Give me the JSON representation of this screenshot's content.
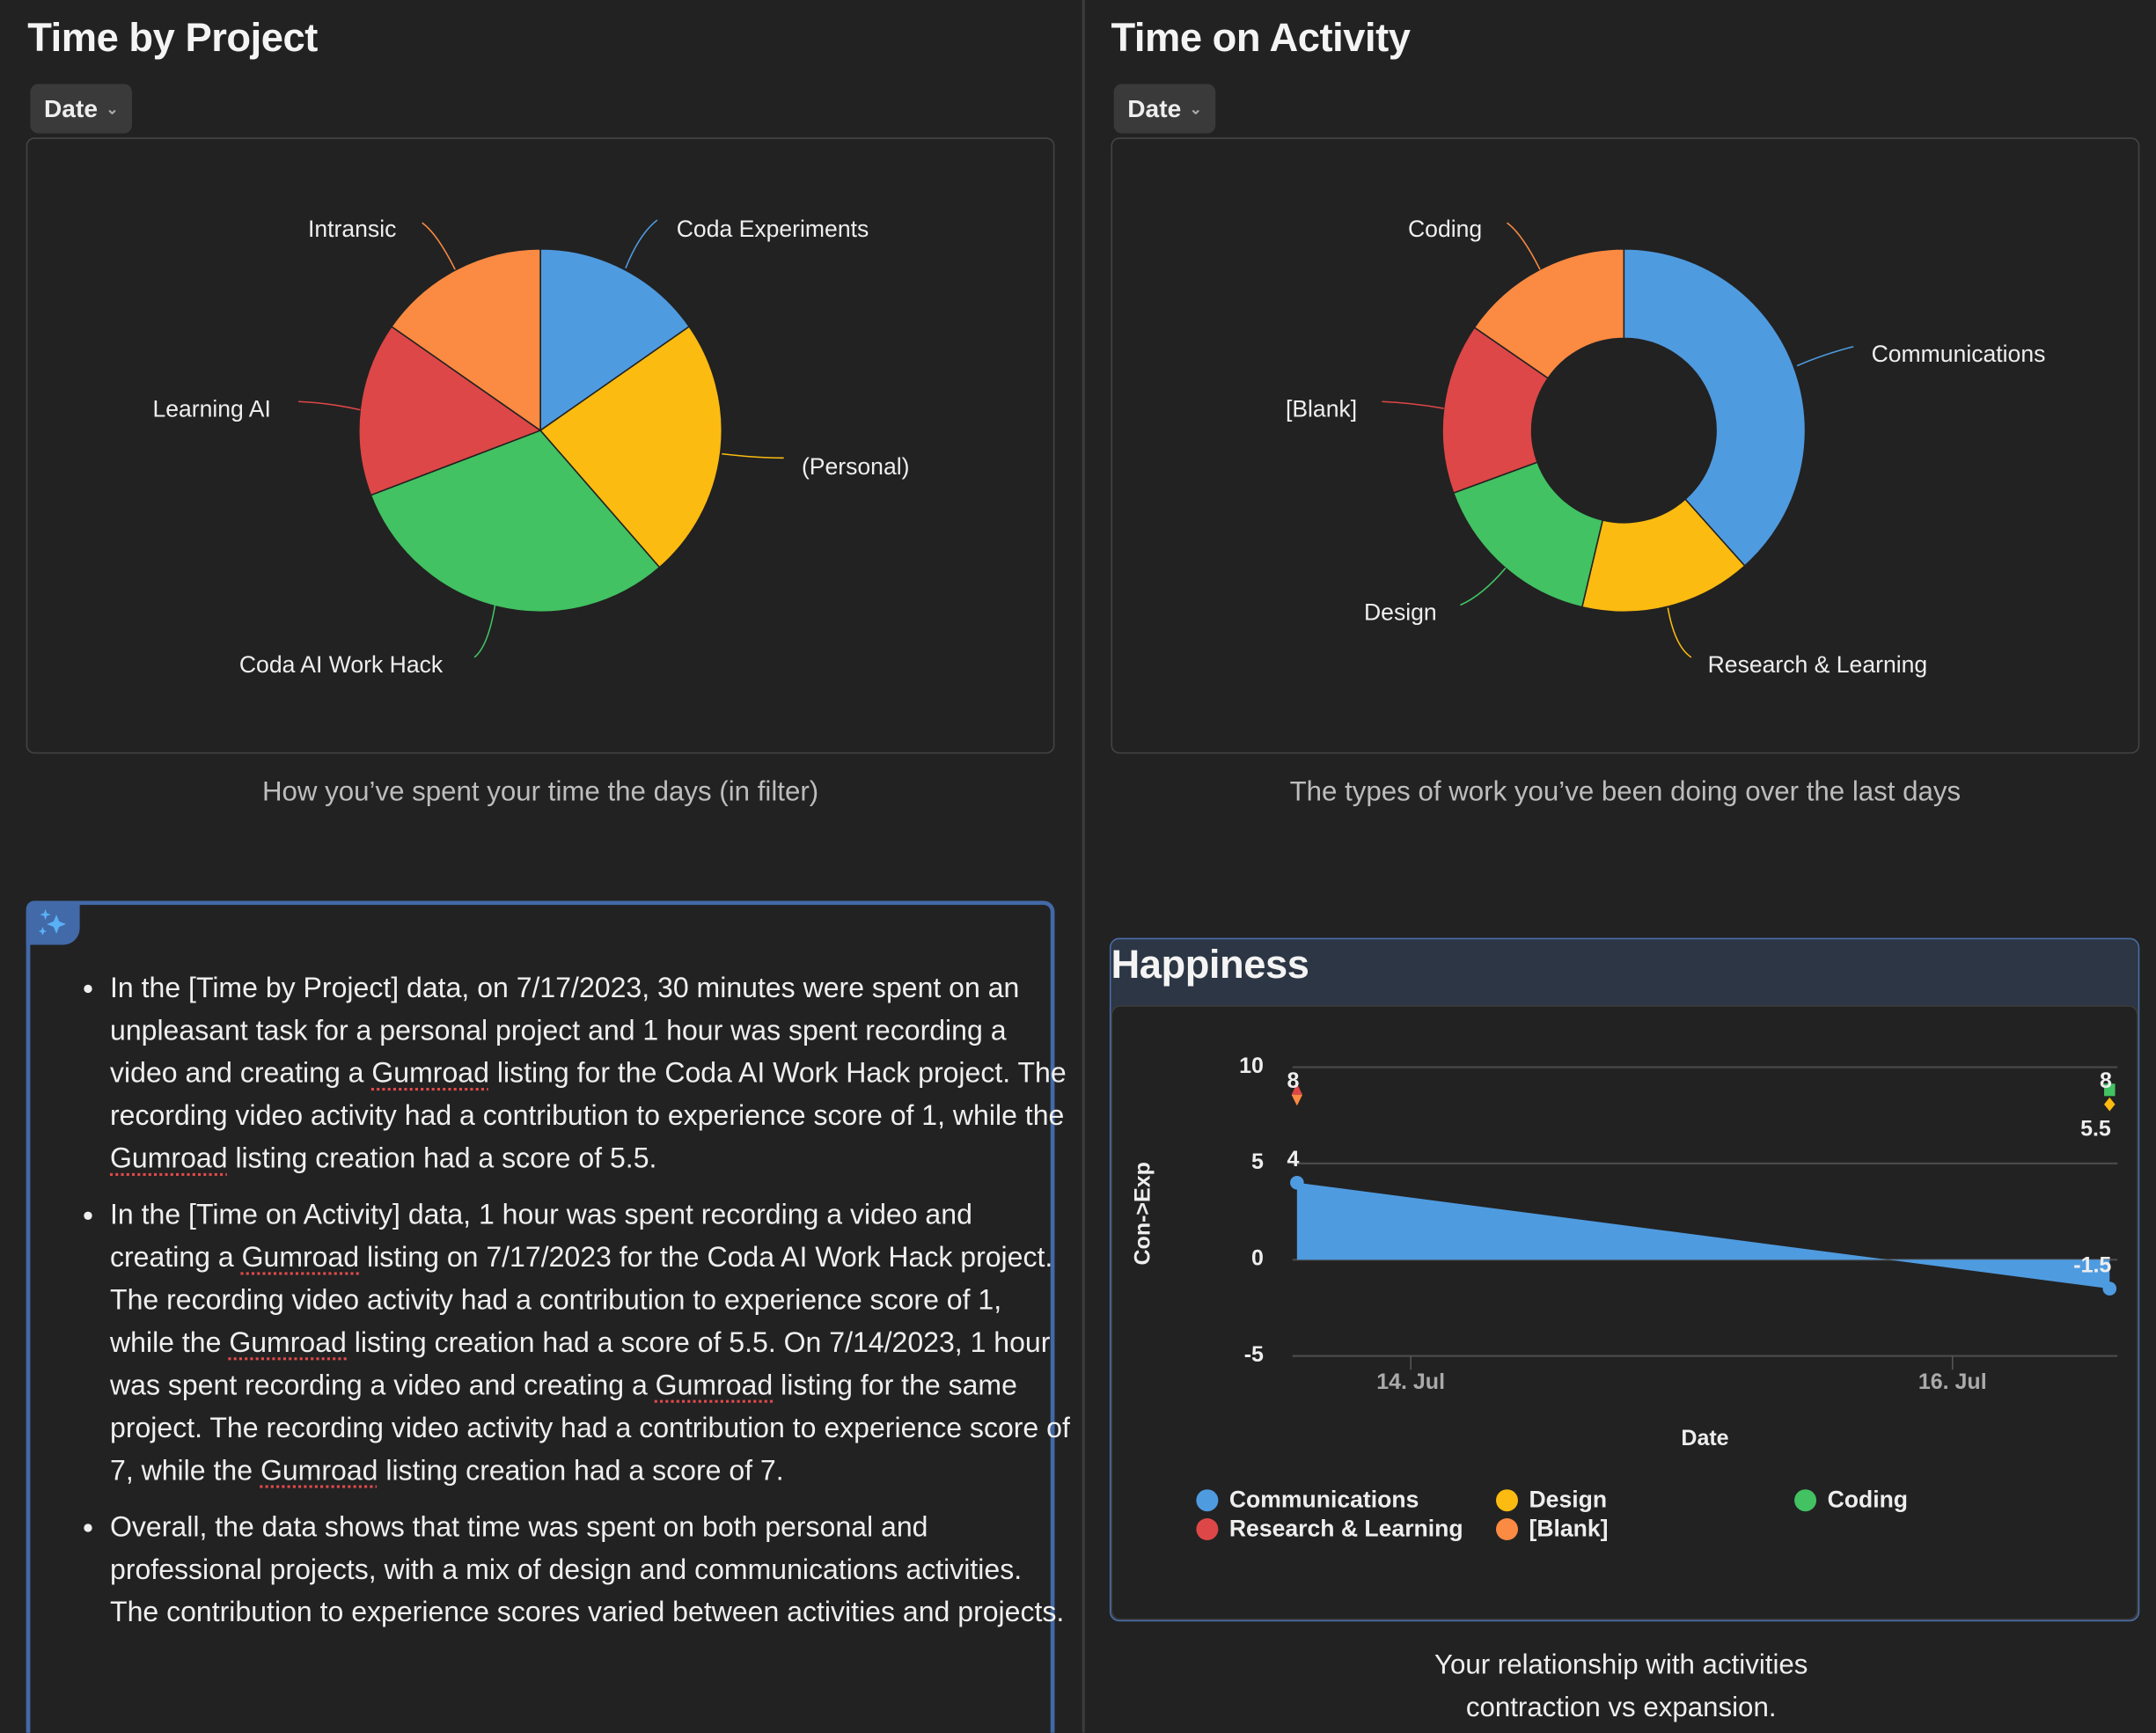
{
  "left": {
    "title": "Time by Project",
    "filter_label": "Date",
    "caption": "How you’ve spent your time the days (in filter)"
  },
  "right": {
    "title": "Time on Activity",
    "filter_label": "Date",
    "caption": "The types of work you’ve been doing over the last days"
  },
  "chart_data": [
    {
      "type": "pie",
      "title": "Time by Project",
      "slices": [
        {
          "label": "Coda Experiments",
          "value": 15.3,
          "color": "#4f9be0"
        },
        {
          "label": "(Personal)",
          "value": 23.3,
          "color": "#fbbb10"
        },
        {
          "label": "Coda AI Work Hack",
          "value": 30.6,
          "color": "#42c262"
        },
        {
          "label": "Learning AI",
          "value": 15.5,
          "color": "#de4747"
        },
        {
          "label": "Intransic",
          "value": 15.3,
          "color": "#fb8a42"
        }
      ]
    },
    {
      "type": "pie",
      "donut": true,
      "title": "Time on Activity",
      "slices": [
        {
          "label": "Communications",
          "value": 38.4,
          "color": "#4f9be0"
        },
        {
          "label": "Research & Learning",
          "value": 15.3,
          "color": "#fbbb10"
        },
        {
          "label": "Design",
          "value": 15.7,
          "color": "#42c262"
        },
        {
          "label": "[Blank]",
          "value": 15.2,
          "color": "#de4747"
        },
        {
          "label": "Coding",
          "value": 15.4,
          "color": "#fb8a42"
        }
      ]
    },
    {
      "type": "area",
      "title": "Happiness",
      "xlabel": "Date",
      "ylabel": "Con->Exp",
      "ylim": [
        -5,
        10
      ],
      "yticks": [
        "10",
        "5",
        "0",
        "-5"
      ],
      "xticks": [
        "14. Jul",
        "16. Jul"
      ],
      "grid": true,
      "legend": "bottom",
      "series": [
        {
          "name": "Communications",
          "color": "#4f9be0",
          "marker": "area",
          "points": [
            {
              "x": "2023-07-14",
              "y": 4
            },
            {
              "x": "2023-07-17",
              "y": -1.5
            }
          ]
        },
        {
          "name": "Research & Learning",
          "color": "#de4747",
          "marker": "triangle",
          "points": [
            {
              "x": "2023-07-14",
              "y": 8
            }
          ]
        },
        {
          "name": "Design",
          "color": "#fbbb10",
          "marker": "diamond",
          "points": [
            {
              "x": "2023-07-17",
              "y": 5.5
            }
          ]
        },
        {
          "name": "[Blank]",
          "color": "#fb8a42",
          "marker": "triangle-down",
          "points": [
            {
              "x": "2023-07-14",
              "y": 8
            }
          ]
        },
        {
          "name": "Coding",
          "color": "#42c262",
          "marker": "square",
          "points": [
            {
              "x": "2023-07-17",
              "y": 8
            }
          ]
        }
      ],
      "data_labels": [
        "8",
        "4",
        "8",
        "5.5",
        "-1.5"
      ],
      "caption_lines": [
        "Your relationship with activities",
        "contraction vs expansion."
      ]
    }
  ],
  "summary": {
    "icon": "sparkles-icon",
    "bullets": [
      [
        [
          "In the [Time by Project] data, on 7/17/2023, 30 minutes were spent on an unpleasant task for a personal project and 1 hour was spent recording a video and creating a ",
          false
        ],
        [
          "Gumroad",
          true
        ],
        [
          " listing for the Coda AI Work Hack project. The recording video activity had a contribution to experience score of 1, while the ",
          false
        ],
        [
          "Gumroad",
          true
        ],
        [
          " listing creation had a score of 5.5.",
          false
        ]
      ],
      [
        [
          "In the [Time on Activity] data, 1 hour was spent recording a video and creating a ",
          false
        ],
        [
          "Gumroad",
          true
        ],
        [
          " listing on 7/17/2023 for the Coda AI Work Hack project. The recording video activity had a contribution to experience score of 1, while the ",
          false
        ],
        [
          "Gumroad",
          true
        ],
        [
          " listing creation had a score of 5.5. On 7/14/2023, 1 hour was spent recording a video and creating a ",
          false
        ],
        [
          "Gumroad",
          true
        ],
        [
          " listing for the same project. The recording video activity had a contribution to experience score of 7, while the ",
          false
        ],
        [
          "Gumroad",
          true
        ],
        [
          " listing creation had a score of 7.",
          false
        ]
      ],
      [
        [
          "Overall, the data shows that time was spent on both personal and professional projects, with a mix of design and communications activities. The contribution to experience scores varied between activities and projects.",
          false
        ]
      ]
    ]
  }
}
